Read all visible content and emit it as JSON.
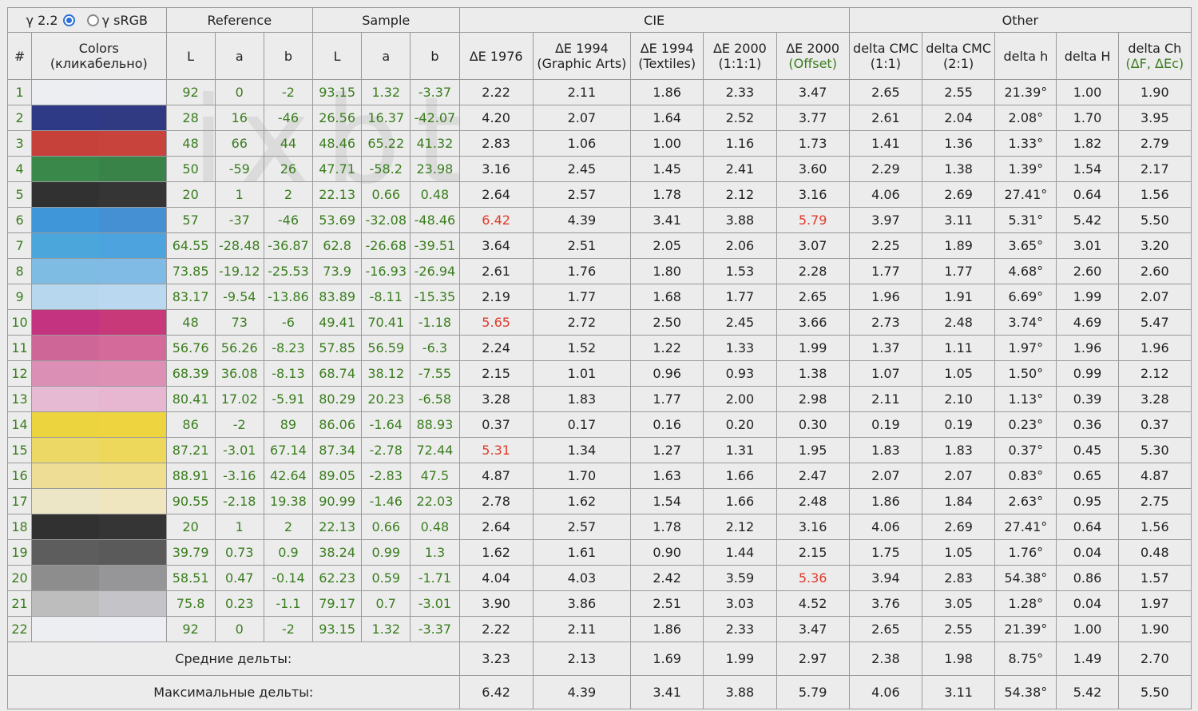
{
  "gamma": {
    "option1": "γ 2.2",
    "option2": "γ sRGB",
    "selected": "γ 2.2"
  },
  "groups": {
    "reference": "Reference",
    "sample": "Sample",
    "cie": "CIE",
    "other": "Other"
  },
  "columns": {
    "num": "#",
    "colors_1": "Colors",
    "colors_2": "(кликабельно)",
    "L": "L",
    "a": "a",
    "b": "b",
    "de1976": "ΔE 1976",
    "de1994ga_1": "ΔE 1994",
    "de1994ga_2": "(Graphic Arts)",
    "de1994t_1": "ΔE 1994",
    "de1994t_2": "(Textiles)",
    "de2000_1": "ΔE 2000",
    "de2000_2": "(1:1:1)",
    "de2000o_1": "ΔE 2000",
    "de2000o_2": "(Offset)",
    "cmc11_1": "delta CMC",
    "cmc11_2": "(1:1)",
    "cmc21_1": "delta CMC",
    "cmc21_2": "(2:1)",
    "dh": "delta h",
    "dH": "delta H",
    "dch_1": "delta Ch",
    "dch_2": "(ΔF, ΔEc)"
  },
  "rows": [
    {
      "n": "1",
      "ref_color": "#eceef2",
      "smp_color": "#eceef4",
      "rL": "92",
      "ra": "0",
      "rb": "-2",
      "sL": "93.15",
      "sa": "1.32",
      "sb": "-3.37",
      "d76": "2.22",
      "d94g": "2.11",
      "d94t": "1.86",
      "d00": "2.33",
      "d00o": "3.47",
      "c11": "2.65",
      "c21": "2.55",
      "dh": "21.39°",
      "dH": "1.00",
      "dCh": "1.90"
    },
    {
      "n": "2",
      "ref_color": "#2f3a86",
      "smp_color": "#2f3a82",
      "rL": "28",
      "ra": "16",
      "rb": "-46",
      "sL": "26.56",
      "sa": "16.37",
      "sb": "-42.07",
      "d76": "4.20",
      "d94g": "2.07",
      "d94t": "1.64",
      "d00": "2.52",
      "d00o": "3.77",
      "c11": "2.61",
      "c21": "2.04",
      "dh": "2.08°",
      "dH": "1.70",
      "dCh": "3.95"
    },
    {
      "n": "3",
      "ref_color": "#c5413a",
      "smp_color": "#c8433c",
      "rL": "48",
      "ra": "66",
      "rb": "44",
      "sL": "48.46",
      "sa": "65.22",
      "sb": "41.32",
      "d76": "2.83",
      "d94g": "1.06",
      "d94t": "1.00",
      "d00": "1.16",
      "d00o": "1.73",
      "c11": "1.41",
      "c21": "1.36",
      "dh": "1.33°",
      "dH": "1.82",
      "dCh": "2.79"
    },
    {
      "n": "4",
      "ref_color": "#3a894a",
      "smp_color": "#3a8348",
      "rL": "50",
      "ra": "-59",
      "rb": "26",
      "sL": "47.71",
      "sa": "-58.2",
      "sb": "23.98",
      "d76": "3.16",
      "d94g": "2.45",
      "d94t": "1.45",
      "d00": "2.41",
      "d00o": "3.60",
      "c11": "2.29",
      "c21": "1.38",
      "dh": "1.39°",
      "dH": "1.54",
      "dCh": "2.17"
    },
    {
      "n": "5",
      "ref_color": "#313131",
      "smp_color": "#353535",
      "rL": "20",
      "ra": "1",
      "rb": "2",
      "sL": "22.13",
      "sa": "0.66",
      "sb": "0.48",
      "d76": "2.64",
      "d94g": "2.57",
      "d94t": "1.78",
      "d00": "2.12",
      "d00o": "3.16",
      "c11": "4.06",
      "c21": "2.69",
      "dh": "27.41°",
      "dH": "0.64",
      "dCh": "1.56"
    },
    {
      "n": "6",
      "ref_color": "#3f96d8",
      "smp_color": "#4590d2",
      "rL": "57",
      "ra": "-37",
      "rb": "-46",
      "sL": "53.69",
      "sa": "-32.08",
      "sb": "-48.46",
      "d76": "6.42",
      "d76_red": true,
      "d94g": "4.39",
      "d94t": "3.41",
      "d00": "3.88",
      "d00o": "5.79",
      "d00o_red": true,
      "c11": "3.97",
      "c21": "3.11",
      "dh": "5.31°",
      "dH": "5.42",
      "dCh": "5.50"
    },
    {
      "n": "7",
      "ref_color": "#4ba6dc",
      "smp_color": "#4da3de",
      "rL": "64.55",
      "ra": "-28.48",
      "rb": "-36.87",
      "sL": "62.8",
      "sa": "-26.68",
      "sb": "-39.51",
      "d76": "3.64",
      "d94g": "2.51",
      "d94t": "2.05",
      "d00": "2.06",
      "d00o": "3.07",
      "c11": "2.25",
      "c21": "1.89",
      "dh": "3.65°",
      "dH": "3.01",
      "dCh": "3.20"
    },
    {
      "n": "8",
      "ref_color": "#7ebce4",
      "smp_color": "#80bbe6",
      "rL": "73.85",
      "ra": "-19.12",
      "rb": "-25.53",
      "sL": "73.9",
      "sa": "-16.93",
      "sb": "-26.94",
      "d76": "2.61",
      "d94g": "1.76",
      "d94t": "1.80",
      "d00": "1.53",
      "d00o": "2.28",
      "c11": "1.77",
      "c21": "1.77",
      "dh": "4.68°",
      "dH": "2.60",
      "dCh": "2.60"
    },
    {
      "n": "9",
      "ref_color": "#b7d7ee",
      "smp_color": "#bad8ef",
      "rL": "83.17",
      "ra": "-9.54",
      "rb": "-13.86",
      "sL": "83.89",
      "sa": "-8.11",
      "sb": "-15.35",
      "d76": "2.19",
      "d94g": "1.77",
      "d94t": "1.68",
      "d00": "1.77",
      "d00o": "2.65",
      "c11": "1.96",
      "c21": "1.91",
      "dh": "6.69°",
      "dH": "1.99",
      "dCh": "2.07"
    },
    {
      "n": "10",
      "ref_color": "#c43380",
      "smp_color": "#c8397a",
      "rL": "48",
      "ra": "73",
      "rb": "-6",
      "sL": "49.41",
      "sa": "70.41",
      "sb": "-1.18",
      "d76": "5.65",
      "d76_red": true,
      "d94g": "2.72",
      "d94t": "2.50",
      "d00": "2.45",
      "d00o": "3.66",
      "c11": "2.73",
      "c21": "2.48",
      "dh": "3.74°",
      "dH": "4.69",
      "dCh": "5.47"
    },
    {
      "n": "11",
      "ref_color": "#cf6698",
      "smp_color": "#d36a99",
      "rL": "56.76",
      "ra": "56.26",
      "rb": "-8.23",
      "sL": "57.85",
      "sa": "56.59",
      "sb": "-6.3",
      "d76": "2.24",
      "d94g": "1.52",
      "d94t": "1.22",
      "d00": "1.33",
      "d00o": "1.99",
      "c11": "1.37",
      "c21": "1.11",
      "dh": "1.97°",
      "dH": "1.96",
      "dCh": "1.96"
    },
    {
      "n": "12",
      "ref_color": "#db8fb4",
      "smp_color": "#dd90b4",
      "rL": "68.39",
      "ra": "36.08",
      "rb": "-8.13",
      "sL": "68.74",
      "sa": "38.12",
      "sb": "-7.55",
      "d76": "2.15",
      "d94g": "1.01",
      "d94t": "0.96",
      "d00": "0.93",
      "d00o": "1.38",
      "c11": "1.07",
      "c21": "1.05",
      "dh": "1.50°",
      "dH": "0.99",
      "dCh": "2.12"
    },
    {
      "n": "13",
      "ref_color": "#e6bad2",
      "smp_color": "#e7b6d1",
      "rL": "80.41",
      "ra": "17.02",
      "rb": "-5.91",
      "sL": "80.29",
      "sa": "20.23",
      "sb": "-6.58",
      "d76": "3.28",
      "d94g": "1.83",
      "d94t": "1.77",
      "d00": "2.00",
      "d00o": "2.98",
      "c11": "2.11",
      "c21": "2.10",
      "dh": "1.13°",
      "dH": "0.39",
      "dCh": "3.28"
    },
    {
      "n": "14",
      "ref_color": "#ecd43e",
      "smp_color": "#eed540",
      "rL": "86",
      "ra": "-2",
      "rb": "89",
      "sL": "86.06",
      "sa": "-1.64",
      "sb": "88.93",
      "d76": "0.37",
      "d94g": "0.17",
      "d94t": "0.16",
      "d00": "0.20",
      "d00o": "0.30",
      "c11": "0.19",
      "c21": "0.19",
      "dh": "0.23°",
      "dH": "0.36",
      "dCh": "0.37"
    },
    {
      "n": "15",
      "ref_color": "#ecd865",
      "smp_color": "#eed85c",
      "rL": "87.21",
      "ra": "-3.01",
      "rb": "67.14",
      "sL": "87.34",
      "sa": "-2.78",
      "sb": "72.44",
      "d76": "5.31",
      "d76_red": true,
      "d94g": "1.34",
      "d94t": "1.27",
      "d00": "1.31",
      "d00o": "1.95",
      "c11": "1.83",
      "c21": "1.83",
      "dh": "0.37°",
      "dH": "0.45",
      "dCh": "5.30"
    },
    {
      "n": "16",
      "ref_color": "#eddd95",
      "smp_color": "#efde8d",
      "rL": "88.91",
      "ra": "-3.16",
      "rb": "42.64",
      "sL": "89.05",
      "sa": "-2.83",
      "sb": "47.5",
      "d76": "4.87",
      "d94g": "1.70",
      "d94t": "1.63",
      "d00": "1.66",
      "d00o": "2.47",
      "c11": "2.07",
      "c21": "2.07",
      "dh": "0.83°",
      "dH": "0.65",
      "dCh": "4.87"
    },
    {
      "n": "17",
      "ref_color": "#ede6c6",
      "smp_color": "#efe6c0",
      "rL": "90.55",
      "ra": "-2.18",
      "rb": "19.38",
      "sL": "90.99",
      "sa": "-1.46",
      "sb": "22.03",
      "d76": "2.78",
      "d94g": "1.62",
      "d94t": "1.54",
      "d00": "1.66",
      "d00o": "2.48",
      "c11": "1.86",
      "c21": "1.84",
      "dh": "2.63°",
      "dH": "0.95",
      "dCh": "2.75"
    },
    {
      "n": "18",
      "ref_color": "#313131",
      "smp_color": "#353535",
      "rL": "20",
      "ra": "1",
      "rb": "2",
      "sL": "22.13",
      "sa": "0.66",
      "sb": "0.48",
      "d76": "2.64",
      "d94g": "2.57",
      "d94t": "1.78",
      "d00": "2.12",
      "d00o": "3.16",
      "c11": "4.06",
      "c21": "2.69",
      "dh": "27.41°",
      "dH": "0.64",
      "dCh": "1.56"
    },
    {
      "n": "19",
      "ref_color": "#5d5d5d",
      "smp_color": "#5a5a5a",
      "rL": "39.79",
      "ra": "0.73",
      "rb": "0.9",
      "sL": "38.24",
      "sa": "0.99",
      "sb": "1.3",
      "d76": "1.62",
      "d94g": "1.61",
      "d94t": "0.90",
      "d00": "1.44",
      "d00o": "2.15",
      "c11": "1.75",
      "c21": "1.05",
      "dh": "1.76°",
      "dH": "0.04",
      "dCh": "0.48"
    },
    {
      "n": "20",
      "ref_color": "#8d8d8d",
      "smp_color": "#969698",
      "rL": "58.51",
      "ra": "0.47",
      "rb": "-0.14",
      "sL": "62.23",
      "sa": "0.59",
      "sb": "-1.71",
      "d76": "4.04",
      "d94g": "4.03",
      "d94t": "2.42",
      "d00": "3.59",
      "d00o": "5.36",
      "d00o_red": true,
      "c11": "3.94",
      "c21": "2.83",
      "dh": "54.38°",
      "dH": "0.86",
      "dCh": "1.57"
    },
    {
      "n": "21",
      "ref_color": "#bdbdbd",
      "smp_color": "#c4c4c8",
      "rL": "75.8",
      "ra": "0.23",
      "rb": "-1.1",
      "sL": "79.17",
      "sa": "0.7",
      "sb": "-3.01",
      "d76": "3.90",
      "d94g": "3.86",
      "d94t": "2.51",
      "d00": "3.03",
      "d00o": "4.52",
      "c11": "3.76",
      "c21": "3.05",
      "dh": "1.28°",
      "dH": "0.04",
      "dCh": "1.97"
    },
    {
      "n": "22",
      "ref_color": "#eceef2",
      "smp_color": "#eceef4",
      "rL": "92",
      "ra": "0",
      "rb": "-2",
      "sL": "93.15",
      "sa": "1.32",
      "sb": "-3.37",
      "d76": "2.22",
      "d94g": "2.11",
      "d94t": "1.86",
      "d00": "2.33",
      "d00o": "3.47",
      "c11": "2.65",
      "c21": "2.55",
      "dh": "21.39°",
      "dH": "1.00",
      "dCh": "1.90"
    }
  ],
  "avg": {
    "label": "Средние дельты:",
    "d76": "3.23",
    "d94g": "2.13",
    "d94t": "1.69",
    "d00": "1.99",
    "d00o": "2.97",
    "c11": "2.38",
    "c21": "1.98",
    "dh": "8.75°",
    "dH": "1.49",
    "dCh": "2.70"
  },
  "max": {
    "label": "Максимальные дельты:",
    "d76": "6.42",
    "d94g": "4.39",
    "d94t": "3.41",
    "d00": "3.88",
    "d00o": "5.79",
    "c11": "4.06",
    "c21": "3.11",
    "dh": "54.38°",
    "dH": "5.42",
    "dCh": "5.50"
  },
  "colors": {
    "green_text": "#3a7d1e",
    "red_text": "#e03a2a",
    "radio_selected": "#2a6fd6"
  }
}
